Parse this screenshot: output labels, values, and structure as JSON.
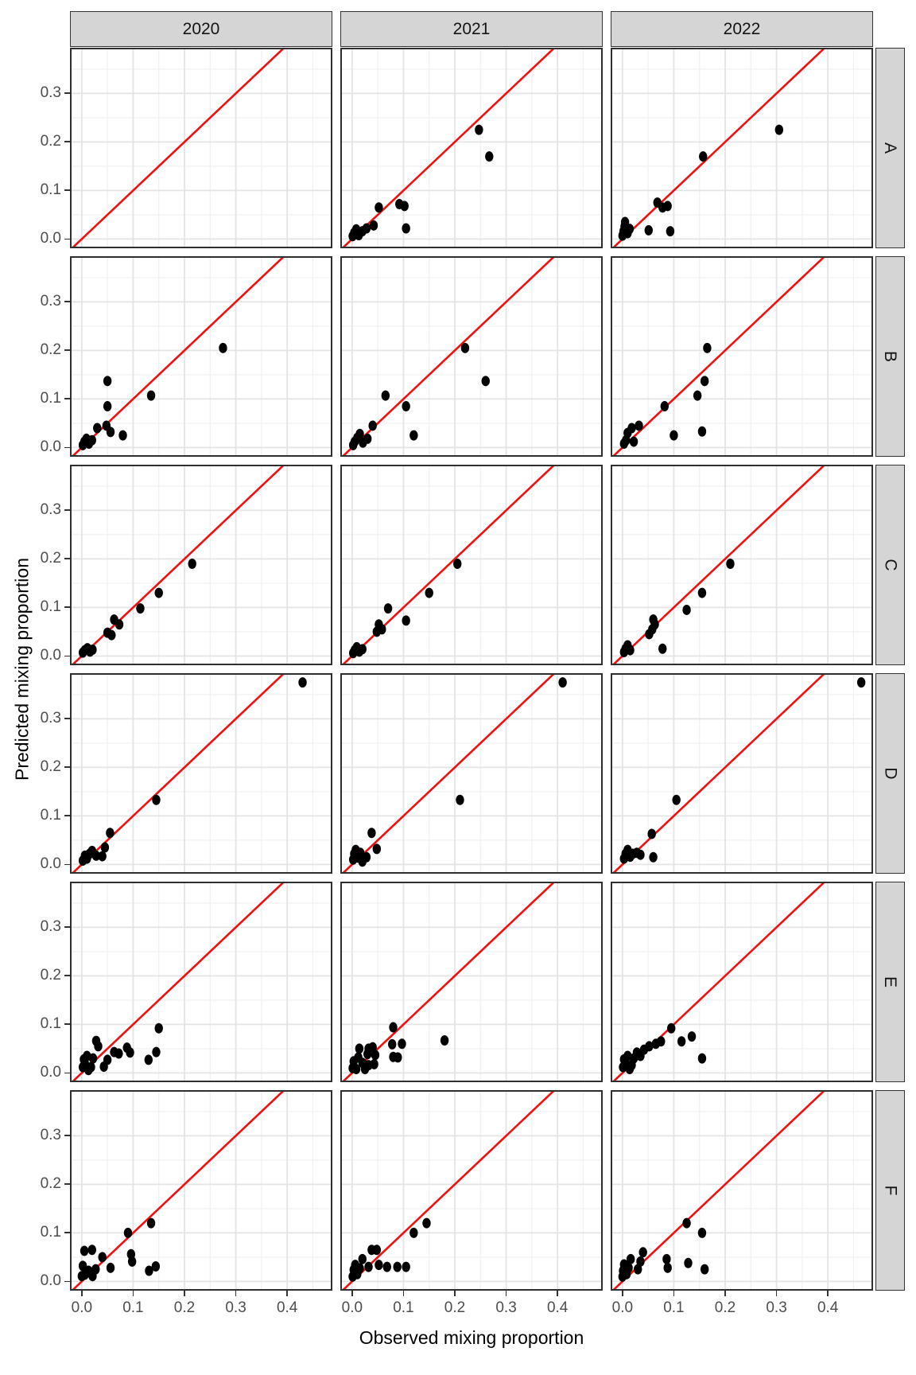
{
  "chart_data": {
    "type": "scatter",
    "title": "",
    "xlabel": "Observed mixing proportion",
    "ylabel": "Predicted mixing proportion",
    "facet_cols": [
      "2020",
      "2021",
      "2022"
    ],
    "facet_rows": [
      "A",
      "B",
      "C",
      "D",
      "E",
      "F"
    ],
    "x_ticks": [
      0.0,
      0.1,
      0.2,
      0.3,
      0.4
    ],
    "y_ticks": [
      0.0,
      0.1,
      0.2,
      0.3
    ],
    "x_tick_labels": [
      "0.0",
      "0.1",
      "0.2",
      "0.3",
      "0.4"
    ],
    "y_tick_labels": [
      "0.0",
      "0.1",
      "0.2",
      "0.3"
    ],
    "xlim": [
      -0.023,
      0.488
    ],
    "ylim": [
      -0.019,
      0.394
    ],
    "grid_step_minor": 0.05,
    "grid_step_major": 0.1,
    "legend": "none",
    "reference_line": {
      "type": "y=x",
      "color": "#F20F0F"
    },
    "point_color": "#000000",
    "strip_bg": "#D5D5D5",
    "panel_bg": "#FFFFFF",
    "grid_major_color": "#E4E4E4",
    "grid_minor_color": "#F0F0F0",
    "border_color": "#2F2F2F",
    "tick_label_color": "#4D4D4D",
    "panels": [
      {
        "row": "A",
        "col": "2020",
        "points": []
      },
      {
        "row": "A",
        "col": "2021",
        "points": [
          [
            0.001,
            0.006
          ],
          [
            0.004,
            0.013
          ],
          [
            0.008,
            0.02
          ],
          [
            0.013,
            0.008
          ],
          [
            0.02,
            0.016
          ],
          [
            0.028,
            0.022
          ],
          [
            0.042,
            0.028
          ],
          [
            0.052,
            0.065
          ],
          [
            0.092,
            0.072
          ],
          [
            0.102,
            0.068
          ],
          [
            0.105,
            0.022
          ],
          [
            0.247,
            0.225
          ],
          [
            0.267,
            0.17
          ]
        ]
      },
      {
        "row": "A",
        "col": "2022",
        "points": [
          [
            0.0,
            0.007
          ],
          [
            0.002,
            0.016
          ],
          [
            0.004,
            0.026
          ],
          [
            0.005,
            0.035
          ],
          [
            0.01,
            0.012
          ],
          [
            0.014,
            0.021
          ],
          [
            0.051,
            0.018
          ],
          [
            0.093,
            0.016
          ],
          [
            0.068,
            0.075
          ],
          [
            0.078,
            0.065
          ],
          [
            0.088,
            0.068
          ],
          [
            0.157,
            0.17
          ],
          [
            0.305,
            0.225
          ]
        ]
      },
      {
        "row": "B",
        "col": "2020",
        "points": [
          [
            0.002,
            0.005
          ],
          [
            0.005,
            0.012
          ],
          [
            0.009,
            0.018
          ],
          [
            0.014,
            0.008
          ],
          [
            0.02,
            0.015
          ],
          [
            0.03,
            0.04
          ],
          [
            0.048,
            0.045
          ],
          [
            0.056,
            0.032
          ],
          [
            0.08,
            0.025
          ],
          [
            0.05,
            0.085
          ],
          [
            0.05,
            0.137
          ],
          [
            0.135,
            0.107
          ],
          [
            0.275,
            0.205
          ]
        ]
      },
      {
        "row": "B",
        "col": "2021",
        "points": [
          [
            0.002,
            0.005
          ],
          [
            0.005,
            0.012
          ],
          [
            0.01,
            0.02
          ],
          [
            0.015,
            0.028
          ],
          [
            0.021,
            0.01
          ],
          [
            0.03,
            0.018
          ],
          [
            0.04,
            0.045
          ],
          [
            0.12,
            0.025
          ],
          [
            0.065,
            0.107
          ],
          [
            0.105,
            0.085
          ],
          [
            0.22,
            0.205
          ],
          [
            0.26,
            0.137
          ]
        ]
      },
      {
        "row": "B",
        "col": "2022",
        "points": [
          [
            0.003,
            0.008
          ],
          [
            0.007,
            0.015
          ],
          [
            0.01,
            0.03
          ],
          [
            0.018,
            0.04
          ],
          [
            0.032,
            0.045
          ],
          [
            0.022,
            0.012
          ],
          [
            0.1,
            0.025
          ],
          [
            0.155,
            0.033
          ],
          [
            0.082,
            0.085
          ],
          [
            0.146,
            0.107
          ],
          [
            0.16,
            0.137
          ],
          [
            0.165,
            0.205
          ]
        ]
      },
      {
        "row": "C",
        "col": "2020",
        "points": [
          [
            0.002,
            0.007
          ],
          [
            0.006,
            0.012
          ],
          [
            0.011,
            0.016
          ],
          [
            0.016,
            0.009
          ],
          [
            0.021,
            0.013
          ],
          [
            0.05,
            0.048
          ],
          [
            0.058,
            0.043
          ],
          [
            0.063,
            0.075
          ],
          [
            0.073,
            0.065
          ],
          [
            0.114,
            0.098
          ],
          [
            0.15,
            0.13
          ],
          [
            0.215,
            0.19
          ]
        ]
      },
      {
        "row": "C",
        "col": "2021",
        "points": [
          [
            0.002,
            0.006
          ],
          [
            0.005,
            0.012
          ],
          [
            0.009,
            0.018
          ],
          [
            0.014,
            0.009
          ],
          [
            0.02,
            0.014
          ],
          [
            0.048,
            0.05
          ],
          [
            0.058,
            0.055
          ],
          [
            0.052,
            0.065
          ],
          [
            0.07,
            0.098
          ],
          [
            0.105,
            0.073
          ],
          [
            0.15,
            0.13
          ],
          [
            0.205,
            0.19
          ]
        ]
      },
      {
        "row": "C",
        "col": "2022",
        "points": [
          [
            0.003,
            0.008
          ],
          [
            0.006,
            0.015
          ],
          [
            0.01,
            0.022
          ],
          [
            0.015,
            0.012
          ],
          [
            0.052,
            0.045
          ],
          [
            0.058,
            0.055
          ],
          [
            0.063,
            0.065
          ],
          [
            0.06,
            0.075
          ],
          [
            0.078,
            0.015
          ],
          [
            0.125,
            0.095
          ],
          [
            0.155,
            0.13
          ],
          [
            0.21,
            0.19
          ]
        ]
      },
      {
        "row": "D",
        "col": "2020",
        "points": [
          [
            0.002,
            0.008
          ],
          [
            0.006,
            0.018
          ],
          [
            0.01,
            0.012
          ],
          [
            0.015,
            0.022
          ],
          [
            0.02,
            0.028
          ],
          [
            0.028,
            0.018
          ],
          [
            0.04,
            0.017
          ],
          [
            0.045,
            0.035
          ],
          [
            0.055,
            0.065
          ],
          [
            0.145,
            0.133
          ],
          [
            0.43,
            0.375
          ]
        ]
      },
      {
        "row": "D",
        "col": "2021",
        "points": [
          [
            0.002,
            0.01
          ],
          [
            0.004,
            0.022
          ],
          [
            0.007,
            0.03
          ],
          [
            0.012,
            0.014
          ],
          [
            0.016,
            0.024
          ],
          [
            0.02,
            0.006
          ],
          [
            0.028,
            0.015
          ],
          [
            0.048,
            0.032
          ],
          [
            0.038,
            0.065
          ],
          [
            0.21,
            0.133
          ],
          [
            0.41,
            0.375
          ]
        ]
      },
      {
        "row": "D",
        "col": "2022",
        "points": [
          [
            0.003,
            0.012
          ],
          [
            0.006,
            0.022
          ],
          [
            0.01,
            0.03
          ],
          [
            0.015,
            0.016
          ],
          [
            0.02,
            0.022
          ],
          [
            0.028,
            0.024
          ],
          [
            0.035,
            0.02
          ],
          [
            0.06,
            0.015
          ],
          [
            0.057,
            0.063
          ],
          [
            0.105,
            0.133
          ],
          [
            0.465,
            0.375
          ]
        ]
      },
      {
        "row": "E",
        "col": "2020",
        "points": [
          [
            0.002,
            0.012
          ],
          [
            0.004,
            0.028
          ],
          [
            0.006,
            0.02
          ],
          [
            0.01,
            0.035
          ],
          [
            0.013,
            0.006
          ],
          [
            0.018,
            0.012
          ],
          [
            0.022,
            0.03
          ],
          [
            0.028,
            0.066
          ],
          [
            0.032,
            0.055
          ],
          [
            0.043,
            0.013
          ],
          [
            0.05,
            0.027
          ],
          [
            0.063,
            0.043
          ],
          [
            0.072,
            0.04
          ],
          [
            0.088,
            0.052
          ],
          [
            0.094,
            0.042
          ],
          [
            0.13,
            0.027
          ],
          [
            0.145,
            0.043
          ],
          [
            0.15,
            0.092
          ]
        ]
      },
      {
        "row": "E",
        "col": "2021",
        "points": [
          [
            0.001,
            0.01
          ],
          [
            0.003,
            0.024
          ],
          [
            0.008,
            0.008
          ],
          [
            0.012,
            0.032
          ],
          [
            0.014,
            0.05
          ],
          [
            0.02,
            0.021
          ],
          [
            0.025,
            0.008
          ],
          [
            0.03,
            0.039
          ],
          [
            0.032,
            0.05
          ],
          [
            0.032,
            0.016
          ],
          [
            0.04,
            0.053
          ],
          [
            0.045,
            0.037
          ],
          [
            0.043,
            0.018
          ],
          [
            0.078,
            0.059
          ],
          [
            0.097,
            0.06
          ],
          [
            0.08,
            0.033
          ],
          [
            0.089,
            0.032
          ],
          [
            0.08,
            0.094
          ],
          [
            0.18,
            0.067
          ]
        ]
      },
      {
        "row": "E",
        "col": "2022",
        "points": [
          [
            0.001,
            0.012
          ],
          [
            0.003,
            0.028
          ],
          [
            0.006,
            0.02
          ],
          [
            0.01,
            0.035
          ],
          [
            0.014,
            0.008
          ],
          [
            0.018,
            0.016
          ],
          [
            0.022,
            0.03
          ],
          [
            0.028,
            0.042
          ],
          [
            0.035,
            0.035
          ],
          [
            0.042,
            0.048
          ],
          [
            0.052,
            0.055
          ],
          [
            0.065,
            0.06
          ],
          [
            0.075,
            0.065
          ],
          [
            0.095,
            0.092
          ],
          [
            0.115,
            0.065
          ],
          [
            0.135,
            0.075
          ],
          [
            0.155,
            0.03
          ]
        ]
      },
      {
        "row": "F",
        "col": "2020",
        "points": [
          [
            0.0,
            0.011
          ],
          [
            0.002,
            0.032
          ],
          [
            0.006,
            0.014
          ],
          [
            0.013,
            0.022
          ],
          [
            0.021,
            0.011
          ],
          [
            0.027,
            0.025
          ],
          [
            0.005,
            0.063
          ],
          [
            0.02,
            0.065
          ],
          [
            0.04,
            0.05
          ],
          [
            0.056,
            0.028
          ],
          [
            0.096,
            0.056
          ],
          [
            0.098,
            0.041
          ],
          [
            0.131,
            0.022
          ],
          [
            0.144,
            0.031
          ],
          [
            0.09,
            0.1
          ],
          [
            0.135,
            0.12
          ]
        ]
      },
      {
        "row": "F",
        "col": "2021",
        "points": [
          [
            0.001,
            0.01
          ],
          [
            0.003,
            0.024
          ],
          [
            0.006,
            0.034
          ],
          [
            0.01,
            0.015
          ],
          [
            0.015,
            0.027
          ],
          [
            0.02,
            0.046
          ],
          [
            0.032,
            0.03
          ],
          [
            0.038,
            0.065
          ],
          [
            0.048,
            0.065
          ],
          [
            0.052,
            0.034
          ],
          [
            0.068,
            0.03
          ],
          [
            0.088,
            0.03
          ],
          [
            0.105,
            0.03
          ],
          [
            0.12,
            0.1
          ],
          [
            0.145,
            0.12
          ]
        ]
      },
      {
        "row": "F",
        "col": "2022",
        "points": [
          [
            0.0,
            0.01
          ],
          [
            0.001,
            0.022
          ],
          [
            0.003,
            0.035
          ],
          [
            0.008,
            0.015
          ],
          [
            0.012,
            0.028
          ],
          [
            0.016,
            0.046
          ],
          [
            0.03,
            0.025
          ],
          [
            0.035,
            0.041
          ],
          [
            0.04,
            0.06
          ],
          [
            0.086,
            0.046
          ],
          [
            0.088,
            0.028
          ],
          [
            0.128,
            0.038
          ],
          [
            0.16,
            0.025
          ],
          [
            0.125,
            0.12
          ],
          [
            0.155,
            0.1
          ]
        ]
      }
    ]
  }
}
